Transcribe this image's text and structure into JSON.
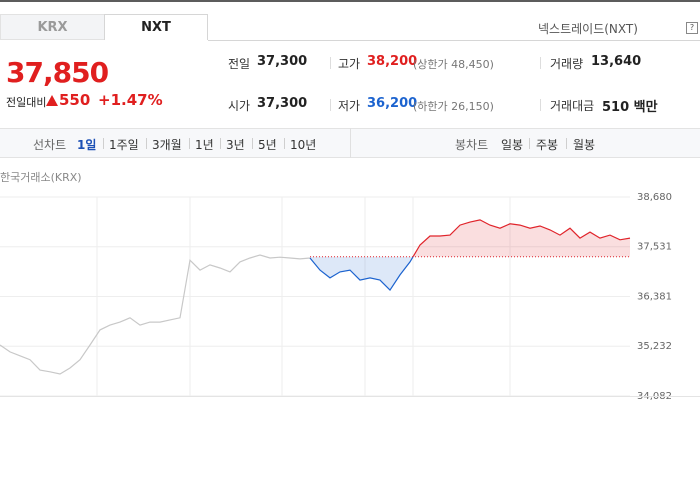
{
  "tabs": [
    "KRX",
    "NXT"
  ],
  "market_link": "넥스트레이드(NXT)",
  "help_icon": "?",
  "price": {
    "current": "37,850",
    "change_label": "전일대비",
    "change": "550",
    "change_rate": "+1.47%"
  },
  "summary": {
    "rows": [
      [
        {
          "label": "전일",
          "value": "37,300"
        },
        {
          "label": "고가",
          "value": "38,200",
          "note": "(상한가 48,450)"
        },
        {
          "label": "거래량",
          "value": "13,640"
        }
      ],
      [
        {
          "label": "시가",
          "value": "37,300"
        },
        {
          "label": "저가",
          "value": "36,200",
          "note": "(하한가 26,150)"
        },
        {
          "label": "거래대금",
          "value": "510 백만"
        }
      ]
    ]
  },
  "toolbar": {
    "line_chart": {
      "label": "선차트",
      "periods": [
        "1일",
        "1주일",
        "3개월",
        "1년",
        "3년",
        "5년",
        "10년"
      ]
    },
    "candle_chart": {
      "label": "봉차트",
      "periods": [
        "일봉",
        "주봉",
        "월봉"
      ]
    }
  },
  "chart_source": "한국거래소(KRX)",
  "chart_data": {
    "type": "line",
    "categories": [
      null,
      null,
      null,
      null,
      null,
      null,
      null,
      null,
      null,
      null,
      null,
      null,
      null,
      null,
      null,
      null,
      null,
      null,
      null,
      null,
      null,
      null,
      null,
      null,
      null,
      null,
      null,
      null,
      null,
      null,
      null,
      null,
      null,
      null,
      null,
      null,
      null,
      null,
      null,
      null,
      null,
      null,
      null,
      null,
      null,
      null,
      null,
      null,
      null,
      null,
      null,
      null,
      null,
      null,
      null,
      null,
      null,
      null,
      null,
      null,
      null,
      null,
      null,
      null
    ],
    "series": [
      {
        "color": "#c8c8c8",
        "values": [
          35260,
          35100,
          35010,
          34920,
          34680,
          34640,
          34590,
          34730,
          34920,
          35260,
          35610,
          35720,
          35790,
          35890,
          35720,
          35790,
          35790,
          35840,
          35890,
          37220,
          36990,
          37110,
          37040,
          36950,
          37180,
          37270,
          37340,
          37270,
          37290,
          37270,
          37250,
          37270,
          null,
          null,
          null,
          null,
          null,
          null,
          null,
          null,
          null,
          null,
          null,
          null,
          null,
          null,
          null,
          null,
          null,
          null,
          null,
          null,
          null,
          null,
          null,
          null,
          null,
          null,
          null,
          null,
          null,
          null,
          null,
          null
        ]
      },
      {
        "color": "#e0242b",
        "down_color": "#1c63cf",
        "values": [
          null,
          null,
          null,
          null,
          null,
          null,
          null,
          null,
          null,
          null,
          null,
          null,
          null,
          null,
          null,
          null,
          null,
          null,
          null,
          null,
          null,
          null,
          null,
          null,
          null,
          null,
          null,
          null,
          null,
          null,
          null,
          37270,
          36990,
          36810,
          36950,
          36990,
          36760,
          36810,
          36760,
          36530,
          36880,
          37180,
          37570,
          37780,
          37780,
          37800,
          38030,
          38100,
          38150,
          38030,
          37960,
          38060,
          38030,
          37960,
          38010,
          37920,
          37800,
          37960,
          37730,
          37870,
          37730,
          37800,
          37690,
          37730
        ]
      }
    ],
    "baseline": 37300,
    "ylim": [
      34082,
      38680
    ],
    "yticks": [
      {
        "value": 38680,
        "label": "38,680"
      },
      {
        "value": 37531,
        "label": "37,531"
      },
      {
        "value": 36381,
        "label": "36,381"
      },
      {
        "value": 35232,
        "label": "35,232"
      },
      {
        "value": 34082,
        "label": "34,082"
      }
    ],
    "grid": true
  }
}
